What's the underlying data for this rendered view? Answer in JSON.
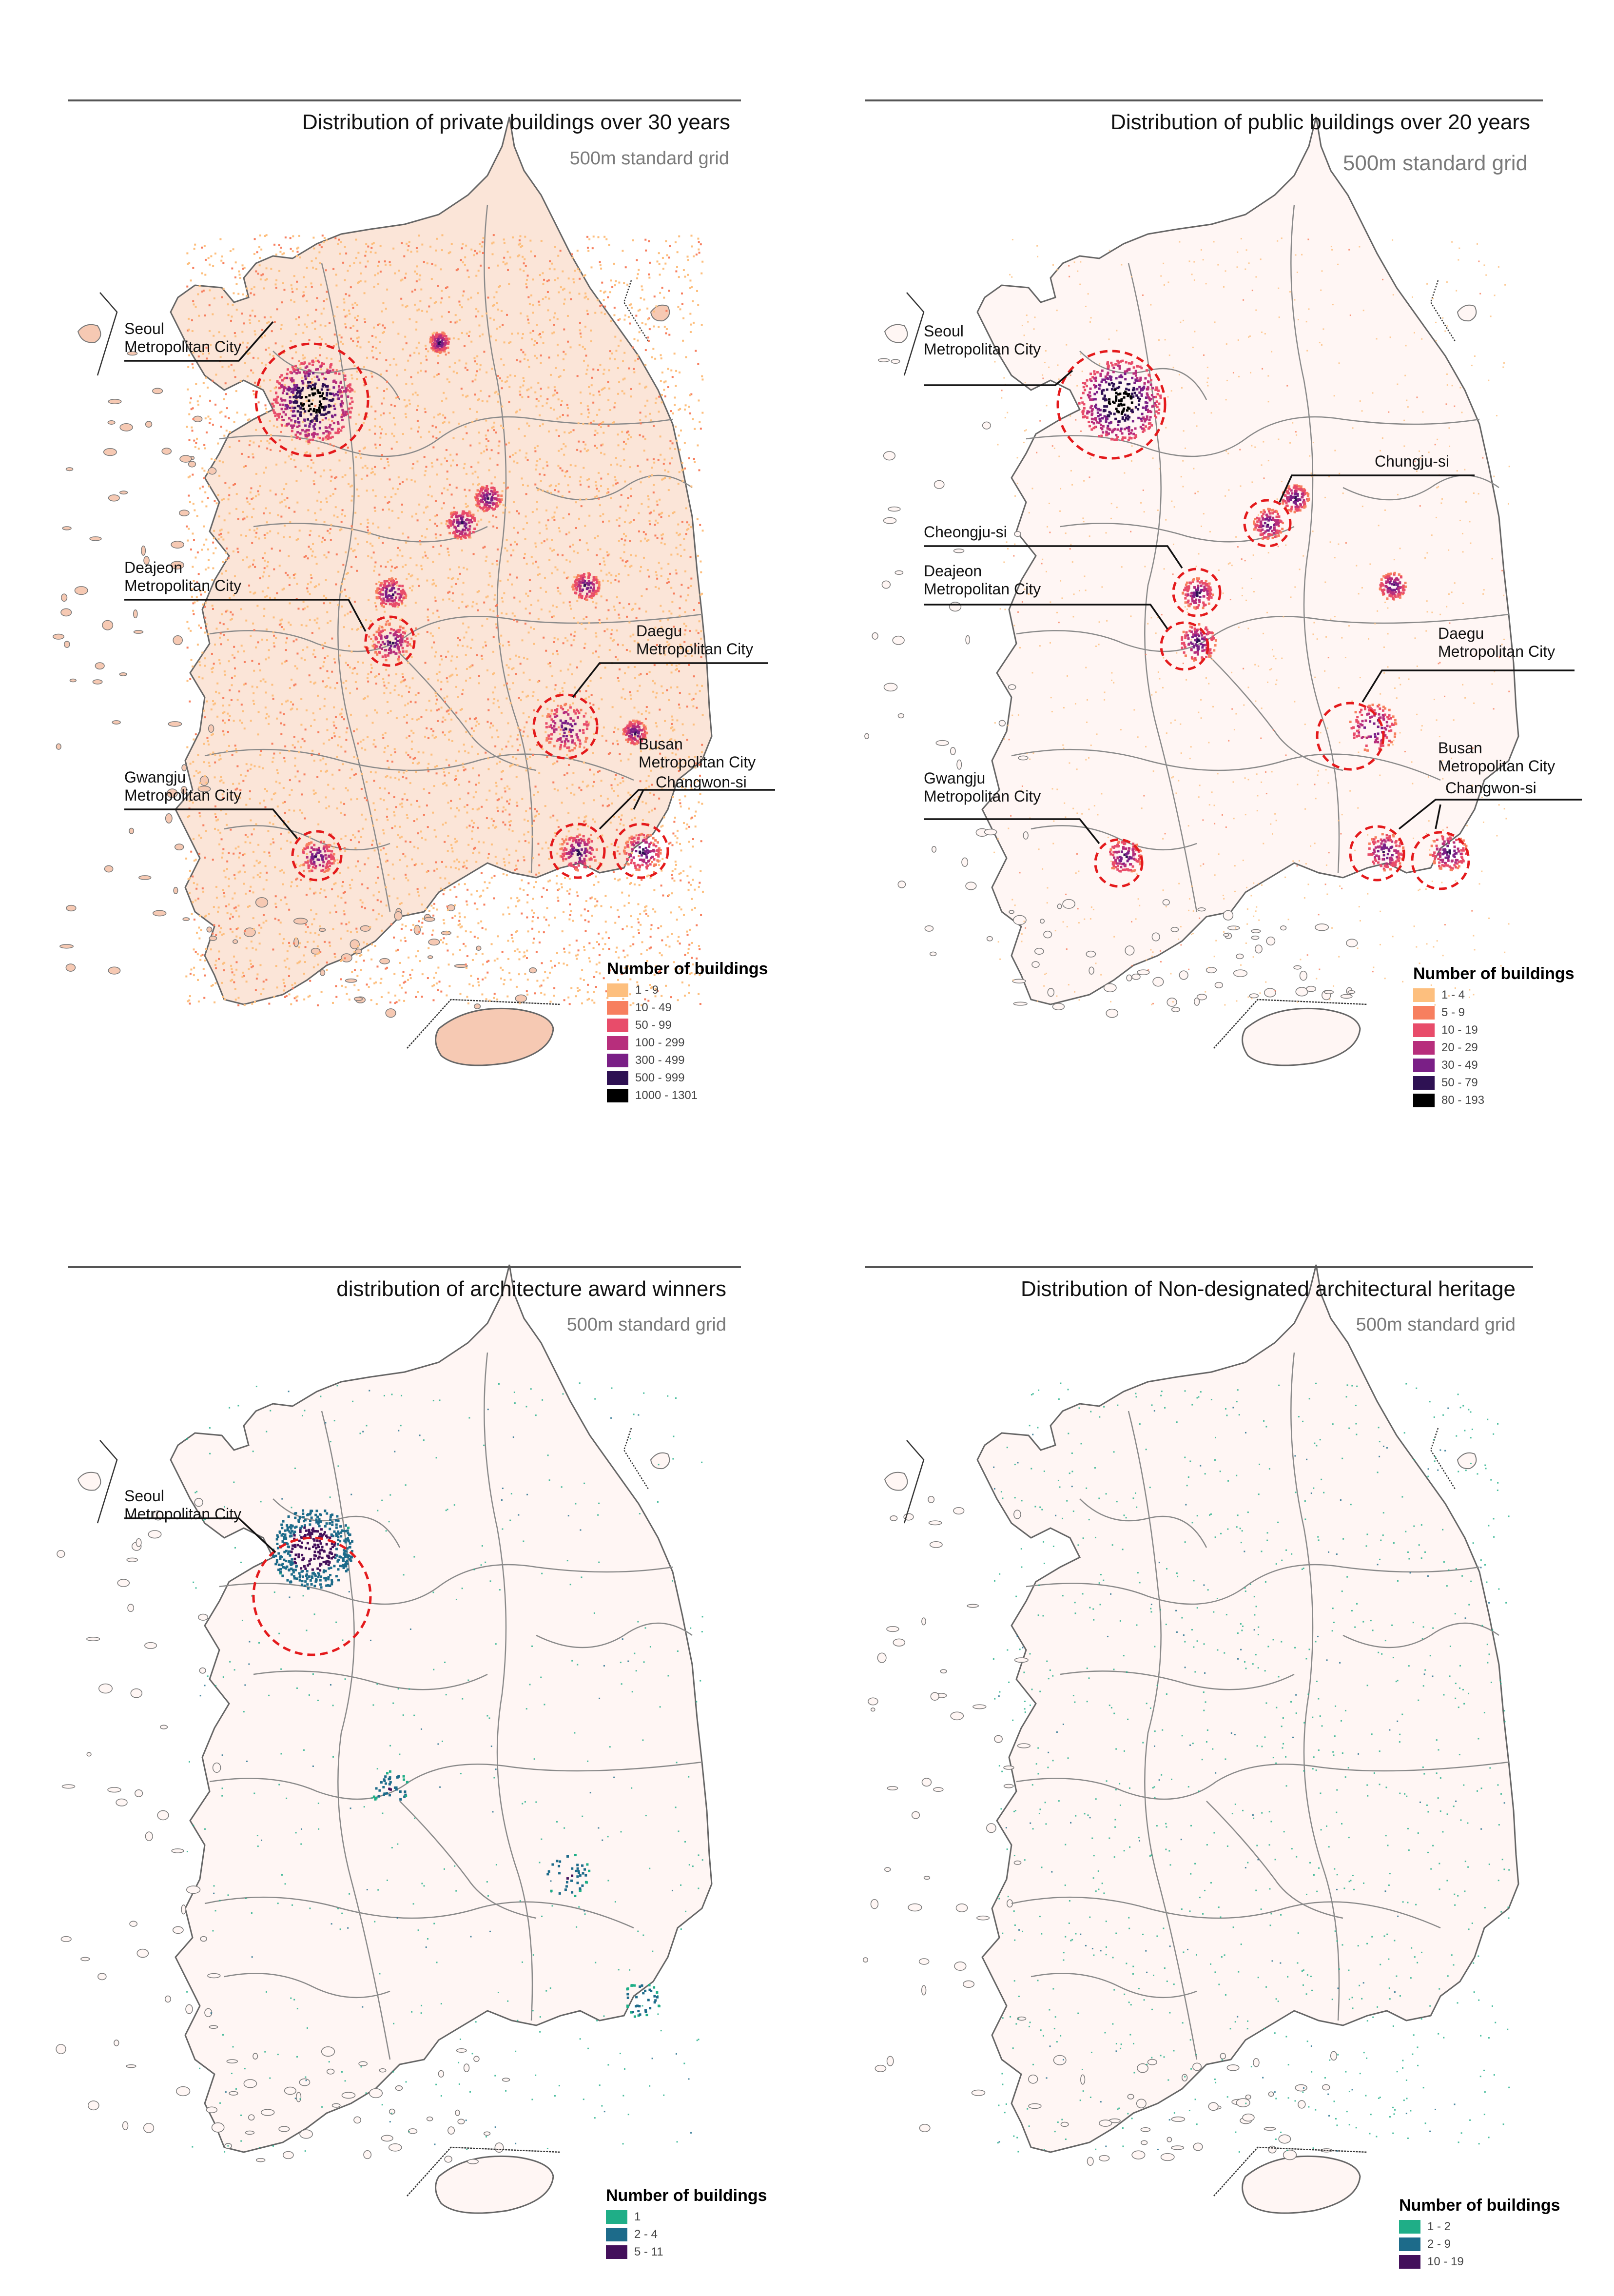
{
  "panels": [
    {
      "title": "Distribution of private buildings over 30 years",
      "subtitle": "500m standard grid",
      "legend": {
        "title": "Number of buildings",
        "items": [
          {
            "label": "1 - 9",
            "color": "#fdbf7e"
          },
          {
            "label": "10 - 49",
            "color": "#f77f5f"
          },
          {
            "label": "50 - 99",
            "color": "#e84c6a"
          },
          {
            "label": "100 - 299",
            "color": "#b72e7c"
          },
          {
            "label": "300 - 499",
            "color": "#7a1f86"
          },
          {
            "label": "500 - 999",
            "color": "#2e1153"
          },
          {
            "label": "1000 - 1301",
            "color": "#000000"
          }
        ]
      },
      "labels": [
        {
          "line1": "Seoul",
          "line2": "Metropolitan City"
        },
        {
          "line1": "Deajeon",
          "line2": "Metropolitan City"
        },
        {
          "line1": "Daegu",
          "line2": "Metropolitan City"
        },
        {
          "line1": "Busan",
          "line2": "Metropolitan City"
        },
        {
          "line1": "Changwon-si",
          "line2": ""
        },
        {
          "line1": "Gwangju",
          "line2": "Metropolitan City"
        }
      ]
    },
    {
      "title": "Distribution of public buildings over 20 years",
      "subtitle": "500m standard grid",
      "legend": {
        "title": "Number of buildings",
        "items": [
          {
            "label": "1 - 4",
            "color": "#fdbf7e"
          },
          {
            "label": "5 - 9",
            "color": "#f77f5f"
          },
          {
            "label": "10 - 19",
            "color": "#e84c6a"
          },
          {
            "label": "20 - 29",
            "color": "#b72e7c"
          },
          {
            "label": "30 - 49",
            "color": "#7a1f86"
          },
          {
            "label": "50 - 79",
            "color": "#2e1153"
          },
          {
            "label": "80 - 193",
            "color": "#000000"
          }
        ]
      },
      "labels": [
        {
          "line1": "Seoul",
          "line2": "Metropolitan City"
        },
        {
          "line1": "Chungju-si",
          "line2": ""
        },
        {
          "line1": "Cheongju-si",
          "line2": ""
        },
        {
          "line1": "Deajeon",
          "line2": "Metropolitan City"
        },
        {
          "line1": "Daegu",
          "line2": "Metropolitan City"
        },
        {
          "line1": "Busan",
          "line2": "Metropolitan City"
        },
        {
          "line1": "Changwon-si",
          "line2": ""
        },
        {
          "line1": "Gwangju",
          "line2": "Metropolitan City"
        }
      ]
    },
    {
      "title": "distribution of architecture award winners",
      "subtitle": "500m standard grid",
      "legend": {
        "title": "Number of buildings",
        "items": [
          {
            "label": "1",
            "color": "#1fae87"
          },
          {
            "label": "2 - 4",
            "color": "#1d6b8a"
          },
          {
            "label": "5 - 11",
            "color": "#43105b"
          }
        ]
      },
      "labels": [
        {
          "line1": "Seoul",
          "line2": "Metropolitan City"
        }
      ]
    },
    {
      "title": "Distribution of Non-designated architectural heritage",
      "subtitle": "500m standard grid",
      "legend": {
        "title": "Number of buildings",
        "items": [
          {
            "label": "1 - 2",
            "color": "#1fae87"
          },
          {
            "label": "2 - 9",
            "color": "#1d6b8a"
          },
          {
            "label": "10 - 19",
            "color": "#43105b"
          }
        ]
      },
      "labels": []
    }
  ]
}
